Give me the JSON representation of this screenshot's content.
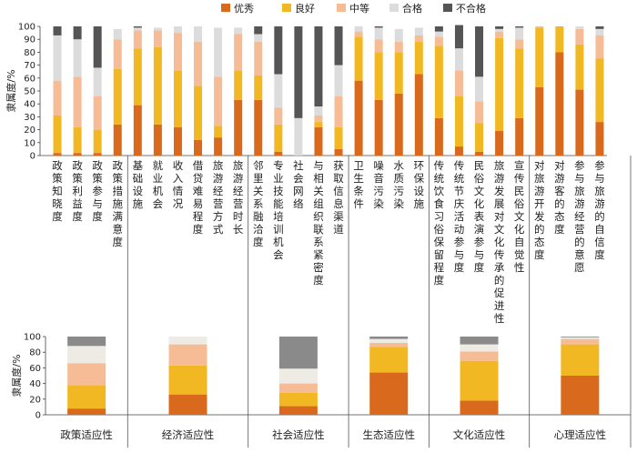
{
  "chart_data": [
    {
      "type": "bar",
      "stacked": true,
      "ylabel": "隶属度/%",
      "ylim": [
        0,
        100
      ],
      "yticks": [
        0,
        10,
        20,
        30,
        40,
        50,
        60,
        70,
        80,
        90,
        100
      ],
      "legend": {
        "placement": "top",
        "items": [
          "优秀",
          "良好",
          "中等",
          "合格",
          "不合格"
        ]
      },
      "series_colors": [
        "#D9691C",
        "#F2B824",
        "#F5BC96",
        "#DCDCDC",
        "#555555"
      ],
      "categories": [
        "政策知晓度",
        "政策利益度",
        "政策参与度",
        "政策措施满意度",
        "基础设施",
        "就业机会",
        "收入情况",
        "借贷难易程度",
        "旅游经营方式",
        "旅游经营时长",
        "邻里关系融洽度",
        "专业技能培训机会",
        "社会网络",
        "与相关组织联系紧密度",
        "获取信息渠道",
        "卫生条件",
        "噪音污染",
        "水质污染",
        "环保设施",
        "传统饮食习俗保留程度",
        "传统节庆活动参与度",
        "民俗文化表演参与度",
        "旅游发展对文化传承的促进性",
        "宣传民俗文化自觉性",
        "对旅游开发的态度",
        "对游客的态度",
        "参与旅游经营的意愿",
        "参与旅游的自信度"
      ],
      "groups": [
        {
          "name": "政策适应性",
          "count": 4
        },
        {
          "name": "经济适应性",
          "count": 6
        },
        {
          "name": "社会适应性",
          "count": 5
        },
        {
          "name": "生态适应性",
          "count": 4
        },
        {
          "name": "文化适应性",
          "count": 5
        },
        {
          "name": "心理适应性",
          "count": 4
        }
      ],
      "series": [
        {
          "name": "优秀",
          "values": [
            2,
            2,
            2,
            24,
            39,
            24,
            22,
            12,
            14,
            43,
            43,
            3,
            0,
            22,
            5,
            58,
            43,
            48,
            63,
            29,
            7,
            3,
            19,
            29,
            53,
            80,
            51,
            26
          ]
        },
        {
          "name": "良好",
          "values": [
            29,
            20,
            18,
            43,
            44,
            60,
            44,
            42,
            9,
            23,
            19,
            21,
            0,
            4,
            17,
            34,
            37,
            32,
            25,
            56,
            39,
            22,
            72,
            54,
            46,
            20,
            35,
            49
          ]
        },
        {
          "name": "中等",
          "values": [
            27,
            39,
            26,
            23,
            14,
            13,
            29,
            34,
            38,
            28,
            26,
            13,
            0,
            5,
            24,
            4,
            10,
            8,
            5,
            7,
            20,
            17,
            5,
            7,
            1,
            0,
            12,
            18
          ]
        },
        {
          "name": "合格",
          "values": [
            35,
            29,
            22,
            8,
            2,
            2,
            5,
            12,
            38,
            5,
            6,
            26,
            29,
            7,
            24,
            4,
            9,
            10,
            6,
            4,
            17,
            19,
            2,
            9,
            0,
            0,
            2,
            5
          ]
        },
        {
          "name": "不合格",
          "values": [
            7,
            10,
            32,
            0,
            1,
            0,
            0,
            0,
            0,
            0,
            6,
            37,
            71,
            62,
            30,
            0,
            1,
            0,
            0,
            4,
            18,
            39,
            2,
            1,
            0,
            0,
            0,
            2
          ]
        }
      ]
    },
    {
      "type": "bar",
      "stacked": true,
      "ylabel": "隶属度/%",
      "ylim": [
        0,
        100
      ],
      "yticks": [
        0,
        20,
        40,
        60,
        80,
        100
      ],
      "series_colors": [
        "#D9691C",
        "#F2B824",
        "#F5BC96",
        "#EDEBE3",
        "#8A8A8A"
      ],
      "categories": [
        "政策适应性",
        "经济适应性",
        "社会适应性",
        "生态适应性",
        "文化适应性",
        "心理适应性"
      ],
      "series": [
        {
          "name": "优秀",
          "values": [
            8,
            26,
            11,
            54,
            18,
            50
          ]
        },
        {
          "name": "良好",
          "values": [
            30,
            37,
            17,
            33,
            51,
            40
          ]
        },
        {
          "name": "中等",
          "values": [
            28,
            27,
            12,
            5,
            12,
            7
          ]
        },
        {
          "name": "合格",
          "values": [
            22,
            10,
            19,
            5,
            9,
            2
          ]
        },
        {
          "name": "不合格",
          "values": [
            12,
            0,
            41,
            3,
            10,
            1
          ]
        }
      ]
    }
  ]
}
